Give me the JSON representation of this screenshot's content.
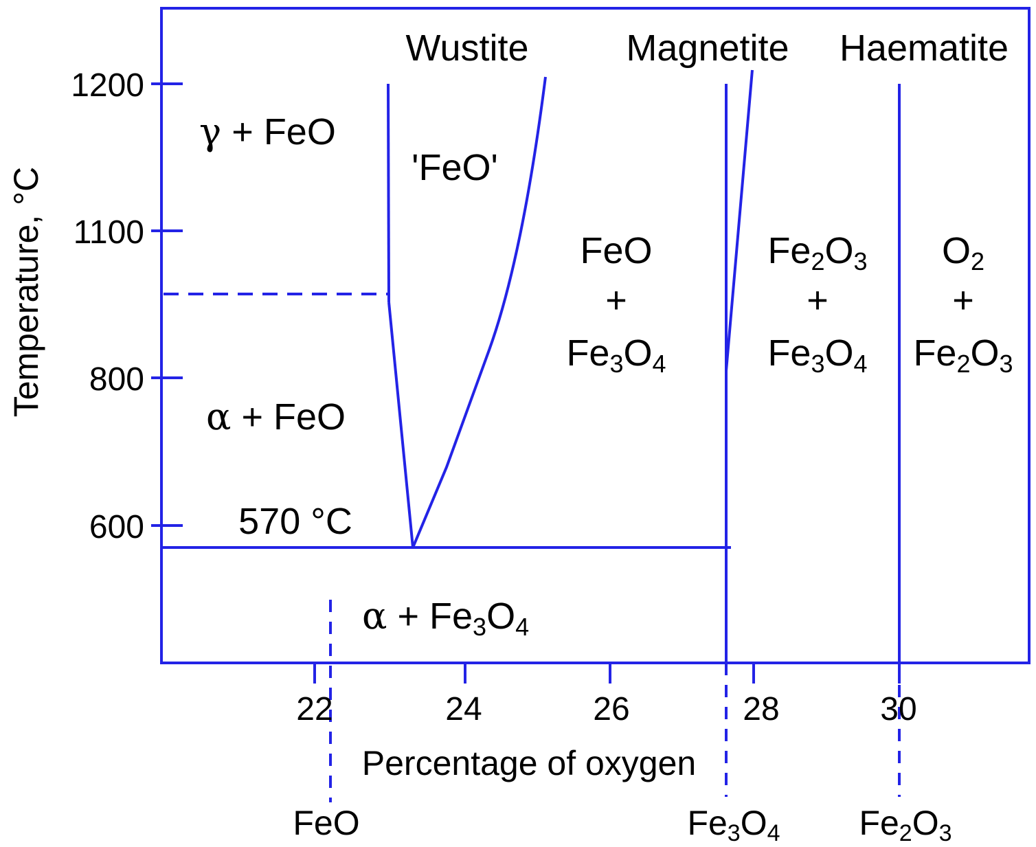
{
  "diagram": {
    "accent_color": "#2323e6",
    "axes": {
      "y_label": "Temperature, °C",
      "x_label": "Percentage of oxygen",
      "y_ticks": [
        "1200",
        "1100",
        "800",
        "600"
      ],
      "x_ticks": [
        "22",
        "24",
        "26",
        "28",
        "30"
      ]
    },
    "phases": {
      "wustite": "Wustite",
      "magnetite": "Magnetite",
      "haematite": "Haematite"
    },
    "regions": {
      "gamma_feo": {
        "symbol": "γ",
        "rest": " + FeO"
      },
      "alpha_feo": {
        "symbol": "α",
        "rest": " + FeO"
      },
      "alpha_fe3o4": {
        "symbol": "α",
        "rest": " + Fe",
        "sub1": "3",
        "mid": "O",
        "sub2": "4"
      },
      "feo_quoted": "'FeO'",
      "eutectoid": "570 °C",
      "feo_fe3o4": {
        "line1": "FeO",
        "plus": "+",
        "line3_a": "Fe",
        "line3_sub1": "3",
        "line3_b": "O",
        "line3_sub2": "4"
      },
      "fe2o3_fe3o4": {
        "line1_a": "Fe",
        "line1_sub1": "2",
        "line1_b": "O",
        "line1_sub2": "3",
        "plus": "+",
        "line3_a": "Fe",
        "line3_sub1": "3",
        "line3_b": "O",
        "line3_sub2": "4"
      },
      "o2_fe2o3": {
        "line1_a": "O",
        "line1_sub": "2",
        "plus": "+",
        "line3_a": "Fe",
        "line3_sub1": "2",
        "line3_b": "O",
        "line3_sub2": "3"
      }
    },
    "compounds": {
      "feo": "FeO",
      "fe3o4": {
        "a": "Fe",
        "sub1": "3",
        "b": "O",
        "sub2": "4"
      },
      "fe2o3": {
        "a": "Fe",
        "sub1": "2",
        "b": "O",
        "sub2": "3"
      }
    }
  }
}
